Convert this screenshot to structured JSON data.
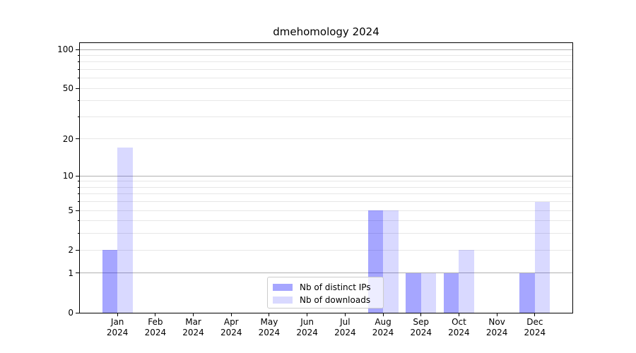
{
  "title": "dmehomology 2024",
  "chart_data": {
    "type": "bar",
    "title": "dmehomology 2024",
    "categories": [
      "Jan 2024",
      "Feb 2024",
      "Mar 2024",
      "Apr 2024",
      "May 2024",
      "Jun 2024",
      "Jul 2024",
      "Aug 2024",
      "Sep 2024",
      "Oct 2024",
      "Nov 2024",
      "Dec 2024"
    ],
    "x_tick_month_names": [
      "Jan",
      "Feb",
      "Mar",
      "Apr",
      "May",
      "Jun",
      "Jul",
      "Aug",
      "Sep",
      "Oct",
      "Nov",
      "Dec"
    ],
    "x_tick_year_line": "2024",
    "series": [
      {
        "name": "Nb of distinct IPs",
        "color": "rgba(0,0,255,0.35)",
        "values": [
          2,
          0,
          0,
          0,
          0,
          0,
          0,
          5,
          1,
          1,
          0,
          1
        ]
      },
      {
        "name": "Nb of downloads",
        "color": "rgba(0,0,255,0.15)",
        "values": [
          17,
          0,
          0,
          0,
          0,
          0,
          0,
          5,
          1,
          2,
          0,
          6
        ]
      }
    ],
    "ylabel": "",
    "xlabel": "",
    "y_axis": {
      "scale": "log1p",
      "tick_labels": [
        "0",
        "1",
        "2",
        "5",
        "10",
        "20",
        "50",
        "100"
      ],
      "tick_values": [
        0,
        1,
        2,
        5,
        10,
        20,
        50,
        100
      ],
      "minor_grid_values": [
        2,
        3,
        4,
        5,
        6,
        7,
        8,
        9,
        20,
        30,
        40,
        50,
        60,
        70,
        80,
        90
      ],
      "major_grid_values": [
        1,
        10,
        100
      ],
      "range": [
        0,
        111
      ]
    },
    "grid": "both",
    "legend": {
      "position": "lower center",
      "entries": [
        "Nb of distinct IPs",
        "Nb of downloads"
      ]
    },
    "colors": {
      "major_grid": "#b0b0b0",
      "minor_grid": "#e7e7e7",
      "spine": "#000000",
      "background": "#ffffff"
    }
  }
}
